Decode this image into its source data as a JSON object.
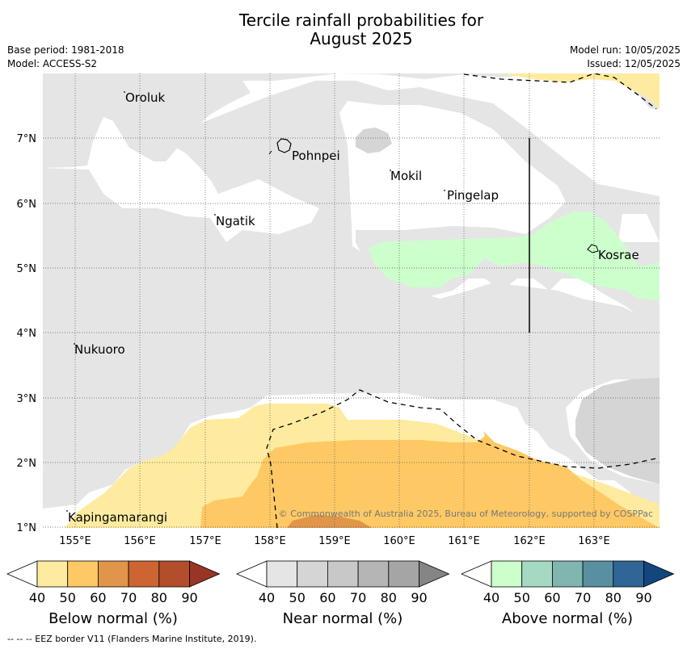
{
  "title_line1": "Tercile rainfall probabilities for",
  "title_line2": "August 2025",
  "meta": {
    "base_period": "Base period: 1981-2018",
    "model": "Model: ACCESS-S2",
    "model_run": "Model run: 10/05/2025",
    "issued": "Issued: 12/05/2025"
  },
  "map": {
    "lon_labels": [
      "155°E",
      "156°E",
      "157°E",
      "158°E",
      "159°E",
      "160°E",
      "161°E",
      "162°E",
      "163°E"
    ],
    "lat_labels": [
      "7°N",
      "6°N",
      "5°N",
      "4°N",
      "3°N",
      "2°N",
      "1°N"
    ],
    "places": [
      "Oroluk",
      "Pohnpei",
      "Mokil",
      "Pingelap",
      "Ngatik",
      "Kosrae",
      "Nukuoro",
      "Kapingamarangi"
    ],
    "copyright": "© Commonwealth of Australia 2025, Bureau of Meteorology, supported by COSPPac"
  },
  "colorbars": [
    {
      "label": "Below normal (%)",
      "colors": [
        "#ffffff",
        "#feeb9f",
        "#fec964",
        "#e0954a",
        "#cd6532",
        "#b34e2b",
        "#983526"
      ]
    },
    {
      "label": "Near normal (%)",
      "colors": [
        "#ffffff",
        "#e5e5e5",
        "#d5d5d5",
        "#c8c8c8",
        "#b5b5b5",
        "#a5a5a5",
        "#858585"
      ]
    },
    {
      "label": "Above normal (%)",
      "colors": [
        "#ffffff",
        "#ccffcc",
        "#a5d9c1",
        "#80b5b0",
        "#5890a2",
        "#2f6697",
        "#13467d"
      ]
    }
  ],
  "colorbar_ticks": [
    "40",
    "50",
    "60",
    "70",
    "80",
    "90"
  ],
  "footnote": "--  --  -- EEZ border V11 (Flanders Marine Institute, 2019)."
}
